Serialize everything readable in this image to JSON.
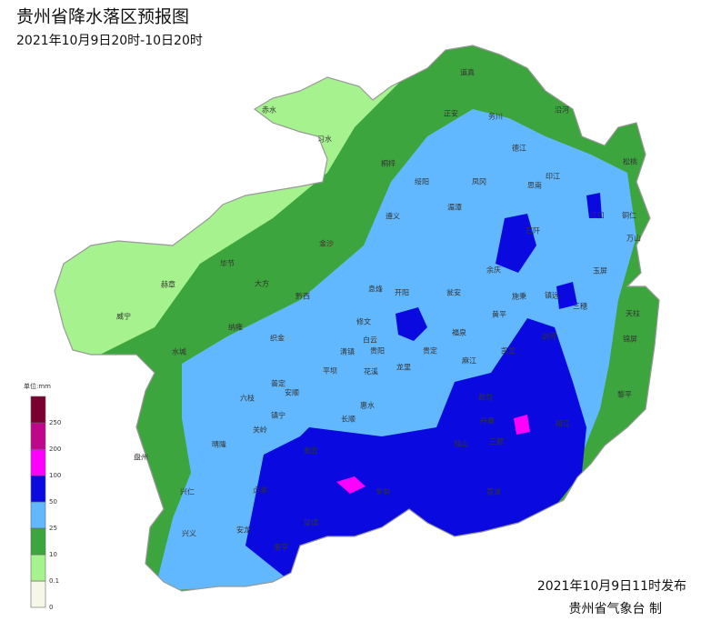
{
  "header": {
    "title": "贵州省降水落区预报图",
    "subtitle": "2021年10月9日20时-10日20时"
  },
  "legend": {
    "unit": "单位:mm",
    "ticks": [
      0,
      0.1,
      10,
      25,
      50,
      100,
      200,
      250
    ],
    "colors": [
      "#f7f7e8",
      "#a6f28f",
      "#3da53d",
      "#61b8ff",
      "#0a0ae0",
      "#ff00ff",
      "#c0068a",
      "#7a0032"
    ]
  },
  "places": [
    "道真",
    "正安",
    "务川",
    "沿河",
    "赤水",
    "习水",
    "桐梓",
    "德江",
    "印江",
    "松桃",
    "绥阳",
    "凤冈",
    "思南",
    "遵义",
    "湄潭",
    "石阡",
    "江口",
    "铜仁",
    "万山",
    "金沙",
    "毕节",
    "赫章",
    "大方",
    "黔西",
    "余庆",
    "玉屏",
    "威宁",
    "息烽",
    "开阳",
    "瓮安",
    "施秉",
    "镇远",
    "三穗",
    "天柱",
    "纳雍",
    "修文",
    "黄平",
    "织金",
    "白云",
    "福泉",
    "凯里",
    "剑河",
    "锦屏",
    "水城",
    "清镇",
    "贵阳",
    "贵定",
    "麻江",
    "平坝",
    "花溪",
    "龙里",
    "都匀",
    "黎平",
    "六枝",
    "普定",
    "安顺",
    "惠水",
    "丹寨",
    "榕江",
    "镇宁",
    "长顺",
    "三都",
    "关岭",
    "晴隆",
    "紫云",
    "独山",
    "盘州",
    "兴仁",
    "贞丰",
    "罗甸",
    "荔波",
    "兴义",
    "安龙",
    "望谟",
    "册亨"
  ],
  "footer": {
    "issued": "2021年10月9日11时发布",
    "agency": "贵州省气象台 制"
  }
}
